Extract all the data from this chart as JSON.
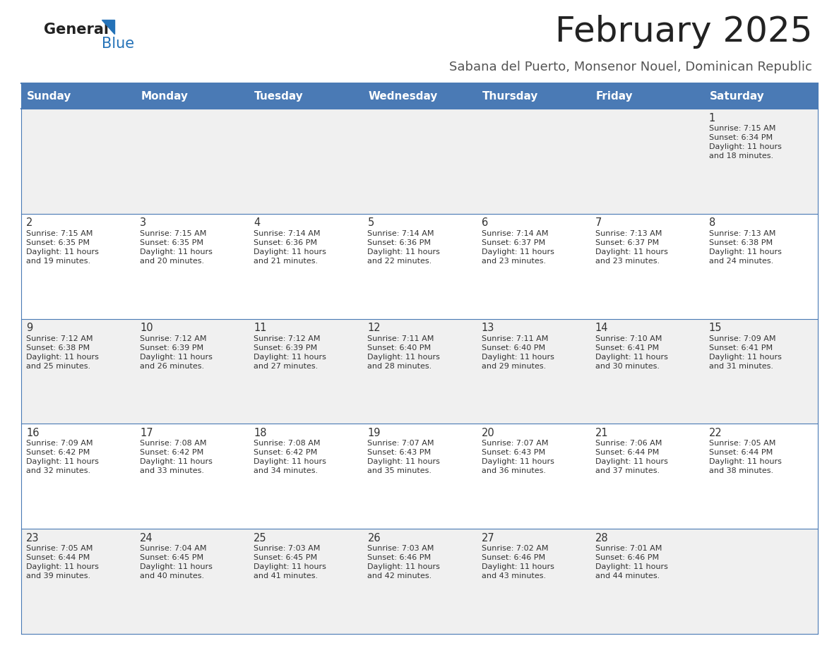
{
  "title": "February 2025",
  "subtitle": "Sabana del Puerto, Monsenor Nouel, Dominican Republic",
  "header_bg": "#4a7ab5",
  "header_text": "#ffffff",
  "day_headers": [
    "Sunday",
    "Monday",
    "Tuesday",
    "Wednesday",
    "Thursday",
    "Friday",
    "Saturday"
  ],
  "row_bg_odd": "#f0f0f0",
  "row_bg_even": "#ffffff",
  "cell_border": "#4a7ab5",
  "text_color": "#333333",
  "title_color": "#222222",
  "subtitle_color": "#555555",
  "logo_general_color": "#222222",
  "logo_blue_color": "#2472b8",
  "days": [
    {
      "day": 1,
      "col": 6,
      "row": 0,
      "sunrise": "7:15 AM",
      "sunset": "6:34 PM",
      "daylight_hours": 11,
      "daylight_minutes": 18
    },
    {
      "day": 2,
      "col": 0,
      "row": 1,
      "sunrise": "7:15 AM",
      "sunset": "6:35 PM",
      "daylight_hours": 11,
      "daylight_minutes": 19
    },
    {
      "day": 3,
      "col": 1,
      "row": 1,
      "sunrise": "7:15 AM",
      "sunset": "6:35 PM",
      "daylight_hours": 11,
      "daylight_minutes": 20
    },
    {
      "day": 4,
      "col": 2,
      "row": 1,
      "sunrise": "7:14 AM",
      "sunset": "6:36 PM",
      "daylight_hours": 11,
      "daylight_minutes": 21
    },
    {
      "day": 5,
      "col": 3,
      "row": 1,
      "sunrise": "7:14 AM",
      "sunset": "6:36 PM",
      "daylight_hours": 11,
      "daylight_minutes": 22
    },
    {
      "day": 6,
      "col": 4,
      "row": 1,
      "sunrise": "7:14 AM",
      "sunset": "6:37 PM",
      "daylight_hours": 11,
      "daylight_minutes": 23
    },
    {
      "day": 7,
      "col": 5,
      "row": 1,
      "sunrise": "7:13 AM",
      "sunset": "6:37 PM",
      "daylight_hours": 11,
      "daylight_minutes": 23
    },
    {
      "day": 8,
      "col": 6,
      "row": 1,
      "sunrise": "7:13 AM",
      "sunset": "6:38 PM",
      "daylight_hours": 11,
      "daylight_minutes": 24
    },
    {
      "day": 9,
      "col": 0,
      "row": 2,
      "sunrise": "7:12 AM",
      "sunset": "6:38 PM",
      "daylight_hours": 11,
      "daylight_minutes": 25
    },
    {
      "day": 10,
      "col": 1,
      "row": 2,
      "sunrise": "7:12 AM",
      "sunset": "6:39 PM",
      "daylight_hours": 11,
      "daylight_minutes": 26
    },
    {
      "day": 11,
      "col": 2,
      "row": 2,
      "sunrise": "7:12 AM",
      "sunset": "6:39 PM",
      "daylight_hours": 11,
      "daylight_minutes": 27
    },
    {
      "day": 12,
      "col": 3,
      "row": 2,
      "sunrise": "7:11 AM",
      "sunset": "6:40 PM",
      "daylight_hours": 11,
      "daylight_minutes": 28
    },
    {
      "day": 13,
      "col": 4,
      "row": 2,
      "sunrise": "7:11 AM",
      "sunset": "6:40 PM",
      "daylight_hours": 11,
      "daylight_minutes": 29
    },
    {
      "day": 14,
      "col": 5,
      "row": 2,
      "sunrise": "7:10 AM",
      "sunset": "6:41 PM",
      "daylight_hours": 11,
      "daylight_minutes": 30
    },
    {
      "day": 15,
      "col": 6,
      "row": 2,
      "sunrise": "7:09 AM",
      "sunset": "6:41 PM",
      "daylight_hours": 11,
      "daylight_minutes": 31
    },
    {
      "day": 16,
      "col": 0,
      "row": 3,
      "sunrise": "7:09 AM",
      "sunset": "6:42 PM",
      "daylight_hours": 11,
      "daylight_minutes": 32
    },
    {
      "day": 17,
      "col": 1,
      "row": 3,
      "sunrise": "7:08 AM",
      "sunset": "6:42 PM",
      "daylight_hours": 11,
      "daylight_minutes": 33
    },
    {
      "day": 18,
      "col": 2,
      "row": 3,
      "sunrise": "7:08 AM",
      "sunset": "6:42 PM",
      "daylight_hours": 11,
      "daylight_minutes": 34
    },
    {
      "day": 19,
      "col": 3,
      "row": 3,
      "sunrise": "7:07 AM",
      "sunset": "6:43 PM",
      "daylight_hours": 11,
      "daylight_minutes": 35
    },
    {
      "day": 20,
      "col": 4,
      "row": 3,
      "sunrise": "7:07 AM",
      "sunset": "6:43 PM",
      "daylight_hours": 11,
      "daylight_minutes": 36
    },
    {
      "day": 21,
      "col": 5,
      "row": 3,
      "sunrise": "7:06 AM",
      "sunset": "6:44 PM",
      "daylight_hours": 11,
      "daylight_minutes": 37
    },
    {
      "day": 22,
      "col": 6,
      "row": 3,
      "sunrise": "7:05 AM",
      "sunset": "6:44 PM",
      "daylight_hours": 11,
      "daylight_minutes": 38
    },
    {
      "day": 23,
      "col": 0,
      "row": 4,
      "sunrise": "7:05 AM",
      "sunset": "6:44 PM",
      "daylight_hours": 11,
      "daylight_minutes": 39
    },
    {
      "day": 24,
      "col": 1,
      "row": 4,
      "sunrise": "7:04 AM",
      "sunset": "6:45 PM",
      "daylight_hours": 11,
      "daylight_minutes": 40
    },
    {
      "day": 25,
      "col": 2,
      "row": 4,
      "sunrise": "7:03 AM",
      "sunset": "6:45 PM",
      "daylight_hours": 11,
      "daylight_minutes": 41
    },
    {
      "day": 26,
      "col": 3,
      "row": 4,
      "sunrise": "7:03 AM",
      "sunset": "6:46 PM",
      "daylight_hours": 11,
      "daylight_minutes": 42
    },
    {
      "day": 27,
      "col": 4,
      "row": 4,
      "sunrise": "7:02 AM",
      "sunset": "6:46 PM",
      "daylight_hours": 11,
      "daylight_minutes": 43
    },
    {
      "day": 28,
      "col": 5,
      "row": 4,
      "sunrise": "7:01 AM",
      "sunset": "6:46 PM",
      "daylight_hours": 11,
      "daylight_minutes": 44
    }
  ]
}
